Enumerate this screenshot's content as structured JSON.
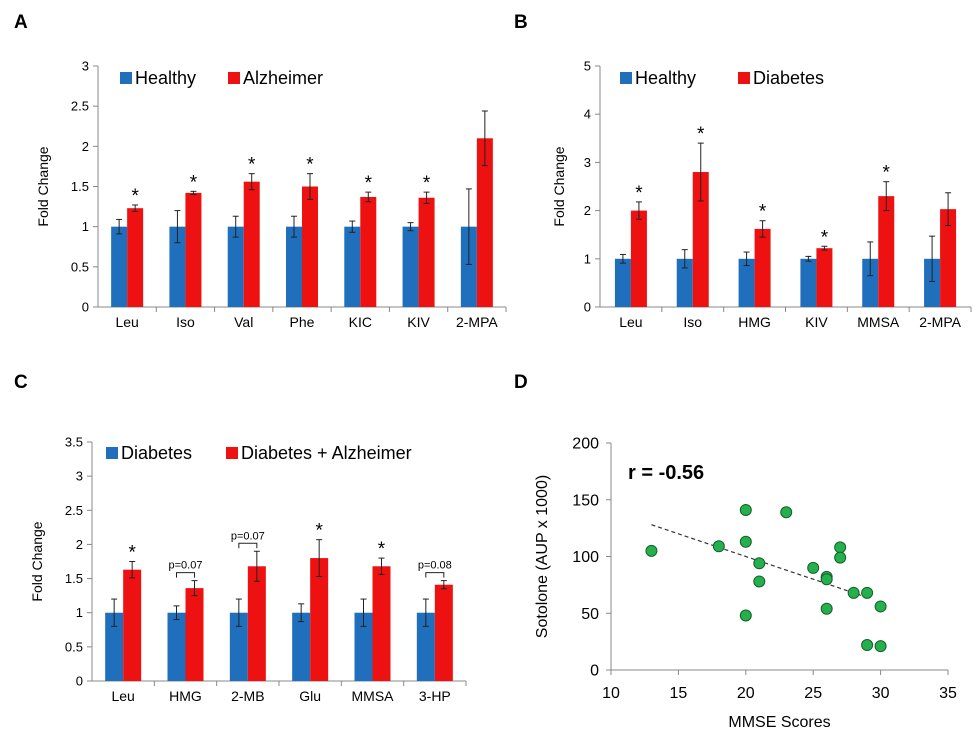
{
  "colors": {
    "blue": "#1f6fbd",
    "red": "#ee1111",
    "green": "#22b14c"
  },
  "chart_data": [
    {
      "panel": "A",
      "type": "bar",
      "ylabel": "Fold Change",
      "ylim": [
        0,
        3
      ],
      "yticks": [
        "0",
        "0.5",
        "1",
        "1.5",
        "2",
        "2.5",
        "3"
      ],
      "categories": [
        "Leu",
        "Iso",
        "Val",
        "Phe",
        "KIC",
        "KIV",
        "2-MPA"
      ],
      "series": [
        {
          "name": "Healthy",
          "values": [
            1,
            1,
            1,
            1,
            1,
            1,
            1
          ],
          "errors": [
            0.09,
            0.2,
            0.13,
            0.13,
            0.07,
            0.05,
            0.47
          ]
        },
        {
          "name": "Alzheimer",
          "values": [
            1.23,
            1.42,
            1.56,
            1.5,
            1.37,
            1.36,
            2.1
          ],
          "errors": [
            0.04,
            0.02,
            0.1,
            0.16,
            0.06,
            0.07,
            0.34
          ]
        }
      ],
      "annotations": [
        "*",
        "*",
        "*",
        "*",
        "*",
        "*",
        ""
      ],
      "brackets": [],
      "legend": "top-left"
    },
    {
      "panel": "B",
      "type": "bar",
      "ylabel": "Fold Change",
      "ylim": [
        0,
        5
      ],
      "yticks": [
        "0",
        "1",
        "2",
        "3",
        "4",
        "5"
      ],
      "categories": [
        "Leu",
        "Iso",
        "HMG",
        "KIV",
        "MMSA",
        "2-MPA"
      ],
      "series": [
        {
          "name": "Healthy",
          "values": [
            1,
            1,
            1,
            1,
            1,
            1
          ],
          "errors": [
            0.09,
            0.19,
            0.14,
            0.05,
            0.35,
            0.47
          ]
        },
        {
          "name": "Diabetes",
          "values": [
            2.0,
            2.8,
            1.62,
            1.22,
            2.3,
            2.03
          ],
          "errors": [
            0.18,
            0.6,
            0.17,
            0.04,
            0.3,
            0.34
          ]
        }
      ],
      "annotations": [
        "*",
        "*",
        "*",
        "*",
        "*",
        ""
      ],
      "brackets": [],
      "legend": "top-left"
    },
    {
      "panel": "C",
      "type": "bar",
      "ylabel": "Fold Change",
      "ylim": [
        0,
        3.5
      ],
      "yticks": [
        "0",
        "0.5",
        "1",
        "1.5",
        "2",
        "2.5",
        "3",
        "3.5"
      ],
      "categories": [
        "Leu",
        "HMG",
        "2-MB",
        "Glu",
        "MMSA",
        "3-HP"
      ],
      "series": [
        {
          "name": "Diabetes",
          "values": [
            1,
            1,
            1,
            1,
            1,
            1
          ],
          "errors": [
            0.2,
            0.1,
            0.2,
            0.13,
            0.2,
            0.2
          ]
        },
        {
          "name": "Diabetes + Alzheimer",
          "values": [
            1.63,
            1.36,
            1.68,
            1.8,
            1.68,
            1.41
          ],
          "errors": [
            0.12,
            0.11,
            0.22,
            0.27,
            0.12,
            0.06
          ]
        }
      ],
      "annotations": [
        "*",
        "",
        "",
        "*",
        "*",
        ""
      ],
      "brackets": [
        "",
        "p=0.07",
        "p=0.07",
        "",
        "",
        "p=0.08"
      ],
      "legend": "top-left"
    },
    {
      "panel": "D",
      "type": "scatter",
      "xlabel": "MMSE Scores",
      "ylabel": "Sotolone (AUP x 1000)",
      "xlim": [
        10,
        35
      ],
      "ylim": [
        0,
        200
      ],
      "xticks": [
        "10",
        "15",
        "20",
        "25",
        "30",
        "35"
      ],
      "yticks": [
        "0",
        "50",
        "100",
        "150",
        "200"
      ],
      "annotation": "r = -0.56",
      "points": [
        [
          13,
          105
        ],
        [
          18,
          109
        ],
        [
          20,
          141
        ],
        [
          20,
          113
        ],
        [
          20,
          48
        ],
        [
          21,
          94
        ],
        [
          21,
          78
        ],
        [
          23,
          139
        ],
        [
          25,
          90
        ],
        [
          26,
          82
        ],
        [
          26,
          80
        ],
        [
          26,
          54
        ],
        [
          27,
          108
        ],
        [
          27,
          99
        ],
        [
          28,
          68
        ],
        [
          29,
          68
        ],
        [
          29,
          22
        ],
        [
          30,
          56
        ],
        [
          30,
          21
        ]
      ],
      "trendline": {
        "x": [
          13,
          29
        ],
        "y": [
          128,
          64
        ]
      }
    }
  ]
}
